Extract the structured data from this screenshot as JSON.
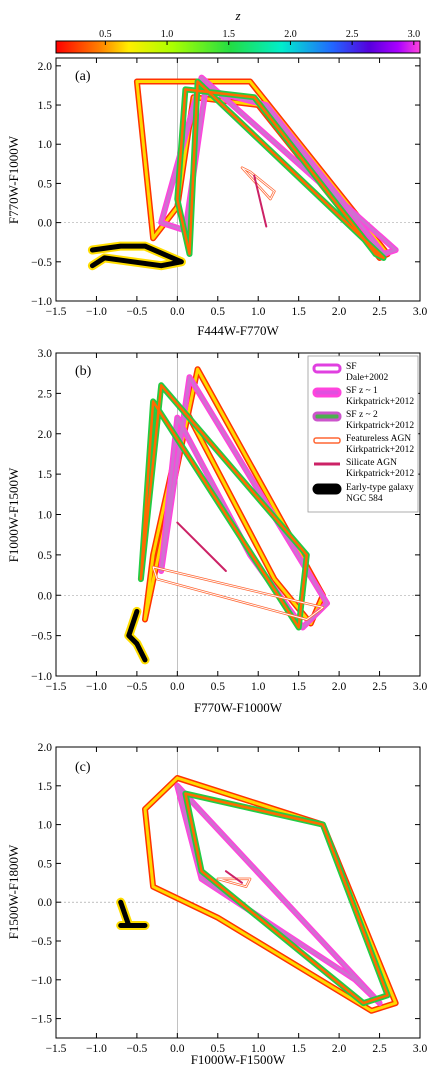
{
  "colorbar": {
    "label": "z",
    "ticks": [
      "0.5",
      "1.0",
      "1.5",
      "2.0",
      "2.5",
      "3.0"
    ],
    "tick_values": [
      0.5,
      1.0,
      1.5,
      2.0,
      2.5,
      3.0
    ],
    "range": [
      0.1,
      3.05
    ]
  },
  "legend": {
    "entries": [
      {
        "line1": "SF",
        "line2": "Dale+2002",
        "fill": "#ffffff",
        "edge": "#e040e0"
      },
      {
        "line1": "SF z ~ 1",
        "line2": "Kirkpatrick+2012",
        "fill": "#e050e0",
        "edge": "#ff44dd"
      },
      {
        "line1": "SF z ~ 2",
        "line2": "Kirkpatrick+2012",
        "fill": "#4caf50",
        "edge": "#cc55cc"
      },
      {
        "line1": "Featureless AGN",
        "line2": "Kirkpatrick+2012",
        "fill": "#ffffff",
        "edge": "#ff6633"
      },
      {
        "line1": "Silicate AGN",
        "line2": "Kirkpatrick+2012",
        "fill": "#cc2266",
        "edge": "#cc2266"
      },
      {
        "line1": "Early-type galaxy",
        "line2": "NGC 584",
        "fill": "#000000",
        "edge": "#000000"
      }
    ]
  },
  "chart_data": [
    {
      "type": "line",
      "panel_label": "(a)",
      "xlabel": "F444W-F770W",
      "ylabel": "F770W-F1000W",
      "xlim": [
        -1.5,
        3.0
      ],
      "ylim": [
        -1.0,
        2.1
      ],
      "xticks": [
        -1.5,
        -1.0,
        -0.5,
        0.0,
        0.5,
        1.0,
        1.5,
        2.0,
        2.5,
        3.0
      ],
      "yticks": [
        -1.0,
        -0.5,
        0.0,
        0.5,
        1.0,
        1.5,
        2.0
      ],
      "series": [
        {
          "style": "sf-dale",
          "points": [
            [
              0.9,
              1.8
            ],
            [
              2.6,
              -0.4
            ],
            [
              2.5,
              -0.45
            ],
            [
              1.0,
              1.5
            ],
            [
              0.2,
              1.6
            ],
            [
              0.0,
              0.2
            ],
            [
              -0.3,
              -0.2
            ],
            [
              -0.5,
              1.8
            ],
            [
              0.9,
              1.8
            ]
          ]
        },
        {
          "style": "sf-z1",
          "points": [
            [
              0.3,
              1.85
            ],
            [
              2.7,
              -0.35
            ],
            [
              2.55,
              -0.4
            ],
            [
              1.1,
              1.5
            ],
            [
              0.35,
              1.7
            ],
            [
              0.1,
              -0.1
            ],
            [
              -0.2,
              0.0
            ],
            [
              0.3,
              1.85
            ]
          ]
        },
        {
          "style": "sf-z2",
          "points": [
            [
              0.25,
              1.8
            ],
            [
              2.55,
              -0.45
            ],
            [
              2.45,
              -0.4
            ],
            [
              0.95,
              1.6
            ],
            [
              0.1,
              1.7
            ],
            [
              0.0,
              0.3
            ],
            [
              0.15,
              -0.4
            ],
            [
              0.25,
              1.8
            ]
          ]
        },
        {
          "style": "agn-featureless",
          "points": [
            [
              0.8,
              0.7
            ],
            [
              1.15,
              0.3
            ],
            [
              1.2,
              0.4
            ],
            [
              0.9,
              0.65
            ],
            [
              0.8,
              0.7
            ]
          ]
        },
        {
          "style": "agn-silicate",
          "points": [
            [
              0.95,
              0.6
            ],
            [
              1.1,
              -0.05
            ]
          ]
        },
        {
          "style": "early",
          "points": [
            [
              -1.05,
              -0.35
            ],
            [
              -0.7,
              -0.3
            ],
            [
              -0.4,
              -0.3
            ],
            [
              0.05,
              -0.5
            ],
            [
              -0.2,
              -0.55
            ],
            [
              -0.9,
              -0.45
            ],
            [
              -1.05,
              -0.55
            ]
          ]
        }
      ]
    },
    {
      "type": "line",
      "panel_label": "(b)",
      "xlabel": "F770W-F1000W",
      "ylabel": "F1000W-F1500W",
      "xlim": [
        -1.5,
        3.0
      ],
      "ylim": [
        -1.0,
        3.0
      ],
      "xticks": [
        -1.5,
        -1.0,
        -0.5,
        0.0,
        0.5,
        1.0,
        1.5,
        2.0,
        2.5,
        3.0
      ],
      "yticks": [
        -1.0,
        -0.5,
        0.0,
        0.5,
        1.0,
        1.5,
        2.0,
        2.5,
        3.0
      ],
      "series": [
        {
          "style": "sf-dale",
          "points": [
            [
              0.25,
              2.8
            ],
            [
              1.8,
              0.0
            ],
            [
              1.65,
              -0.35
            ],
            [
              1.2,
              0.2
            ],
            [
              0.1,
              2.3
            ],
            [
              -0.3,
              0.5
            ],
            [
              -0.4,
              -0.3
            ],
            [
              0.25,
              2.8
            ]
          ]
        },
        {
          "style": "sf-z1",
          "points": [
            [
              0.15,
              2.7
            ],
            [
              1.85,
              -0.1
            ],
            [
              1.55,
              -0.4
            ],
            [
              0.9,
              0.5
            ],
            [
              0.0,
              2.2
            ],
            [
              -0.2,
              0.3
            ],
            [
              0.15,
              2.7
            ]
          ]
        },
        {
          "style": "sf-z2",
          "points": [
            [
              -0.2,
              2.6
            ],
            [
              1.6,
              0.5
            ],
            [
              1.5,
              -0.4
            ],
            [
              0.6,
              1.0
            ],
            [
              -0.3,
              2.4
            ],
            [
              -0.45,
              0.2
            ],
            [
              -0.2,
              2.6
            ]
          ]
        },
        {
          "style": "agn-featureless",
          "points": [
            [
              -0.3,
              0.35
            ],
            [
              1.8,
              -0.15
            ],
            [
              1.6,
              -0.3
            ],
            [
              -0.25,
              0.2
            ],
            [
              -0.3,
              0.35
            ]
          ]
        },
        {
          "style": "agn-silicate",
          "points": [
            [
              0.0,
              0.9
            ],
            [
              0.6,
              0.3
            ]
          ]
        },
        {
          "style": "early",
          "points": [
            [
              -0.5,
              -0.2
            ],
            [
              -0.6,
              -0.5
            ],
            [
              -0.5,
              -0.6
            ],
            [
              -0.4,
              -0.8
            ]
          ]
        }
      ]
    },
    {
      "type": "line",
      "panel_label": "(c)",
      "xlabel": "F1000W-F1500W",
      "ylabel": "F1500W-F1800W",
      "xlim": [
        -1.5,
        3.0
      ],
      "ylim": [
        -1.75,
        2.0
      ],
      "xticks": [
        -1.5,
        -1.0,
        -0.5,
        0.0,
        0.5,
        1.0,
        1.5,
        2.0,
        2.5,
        3.0
      ],
      "yticks": [
        -1.5,
        -1.0,
        -0.5,
        0.0,
        0.5,
        1.0,
        1.5,
        2.0
      ],
      "series": [
        {
          "style": "sf-dale",
          "points": [
            [
              0.0,
              1.6
            ],
            [
              1.8,
              1.0
            ],
            [
              2.7,
              -1.3
            ],
            [
              2.4,
              -1.4
            ],
            [
              0.5,
              -0.2
            ],
            [
              -0.3,
              0.2
            ],
            [
              -0.4,
              1.2
            ],
            [
              0.0,
              1.6
            ]
          ]
        },
        {
          "style": "sf-z1",
          "points": [
            [
              0.0,
              1.5
            ],
            [
              2.5,
              -1.3
            ],
            [
              2.2,
              -1.0
            ],
            [
              0.3,
              0.3
            ],
            [
              0.0,
              1.5
            ]
          ]
        },
        {
          "style": "sf-z2",
          "points": [
            [
              0.1,
              1.4
            ],
            [
              1.8,
              1.0
            ],
            [
              2.6,
              -1.2
            ],
            [
              2.3,
              -1.3
            ],
            [
              0.3,
              0.4
            ],
            [
              0.1,
              1.4
            ]
          ]
        },
        {
          "style": "agn-featureless",
          "points": [
            [
              0.5,
              0.3
            ],
            [
              0.9,
              0.3
            ],
            [
              0.85,
              0.2
            ],
            [
              0.5,
              0.3
            ]
          ]
        },
        {
          "style": "agn-silicate",
          "points": [
            [
              0.6,
              0.4
            ],
            [
              0.8,
              0.25
            ]
          ]
        },
        {
          "style": "early",
          "points": [
            [
              -0.7,
              0.0
            ],
            [
              -0.6,
              -0.3
            ],
            [
              -0.4,
              -0.3
            ],
            [
              -0.7,
              -0.3
            ]
          ]
        }
      ]
    }
  ]
}
